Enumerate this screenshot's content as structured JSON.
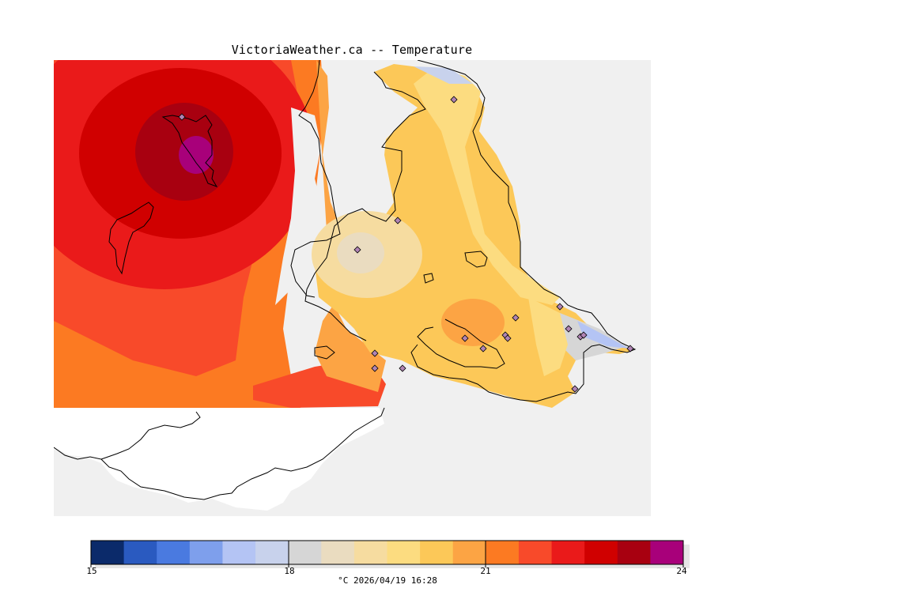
{
  "title": "VictoriaWeather.ca -- Temperature",
  "legend": {
    "ticks": [
      "15",
      "18",
      "21",
      "24"
    ],
    "caption": "°C  2026/04/19 16:28",
    "colors": [
      "#0b2a6a",
      "#2a5ac0",
      "#4a7ae0",
      "#7e9fec",
      "#b4c4f4",
      "#c8d2ec",
      "#d6d6d6",
      "#eadcc0",
      "#f6dca0",
      "#fcdc80",
      "#fcc858",
      "#fca444",
      "#fc7a22",
      "#f84a2a",
      "#ea1a1a",
      "#d00000",
      "#a80010",
      "#a8007a"
    ]
  },
  "map": {
    "colors": {
      "background": "#f0f0f0",
      "land_unshaded": "#ffffff",
      "coast": "#000000",
      "station": "#b084b4"
    },
    "stations": 18
  }
}
